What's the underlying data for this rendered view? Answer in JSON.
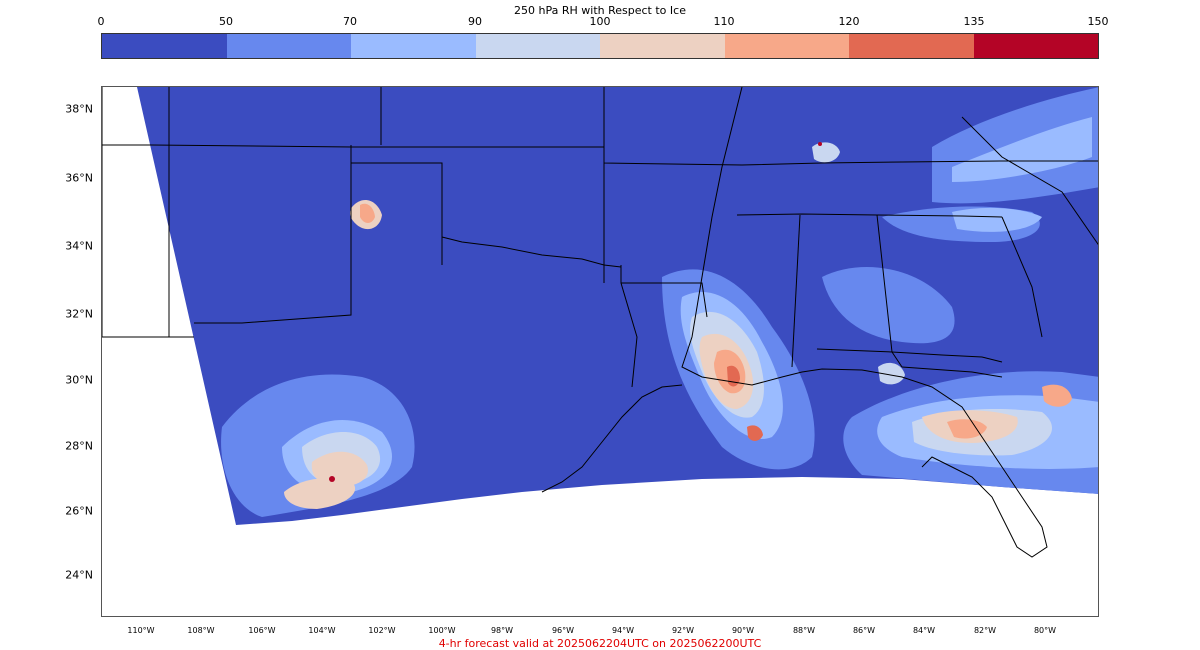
{
  "colorbar": {
    "title": "250 hPa RH with Respect to Ice",
    "ticks": [
      "0",
      "50",
      "70",
      "90",
      "100",
      "110",
      "120",
      "135",
      "150"
    ],
    "colors": [
      "#3b4cc0",
      "#6788ee",
      "#9abbff",
      "#c9d7f0",
      "#edd1c2",
      "#f7a889",
      "#e26952",
      "#b40426"
    ]
  },
  "map": {
    "lat_labels": [
      "38°N",
      "36°N",
      "34°N",
      "32°N",
      "30°N",
      "28°N",
      "26°N",
      "24°N"
    ],
    "lon_labels": [
      "110°W",
      "108°W",
      "106°W",
      "104°W",
      "102°W",
      "100°W",
      "98°W",
      "96°W",
      "94°W",
      "92°W",
      "90°W",
      "88°W",
      "86°W",
      "84°W",
      "82°W",
      "80°W"
    ],
    "background_color": "#3b4cc0"
  },
  "footer": {
    "text": "4-hr forecast valid at 2025062204UTC on 2025062200UTC"
  }
}
